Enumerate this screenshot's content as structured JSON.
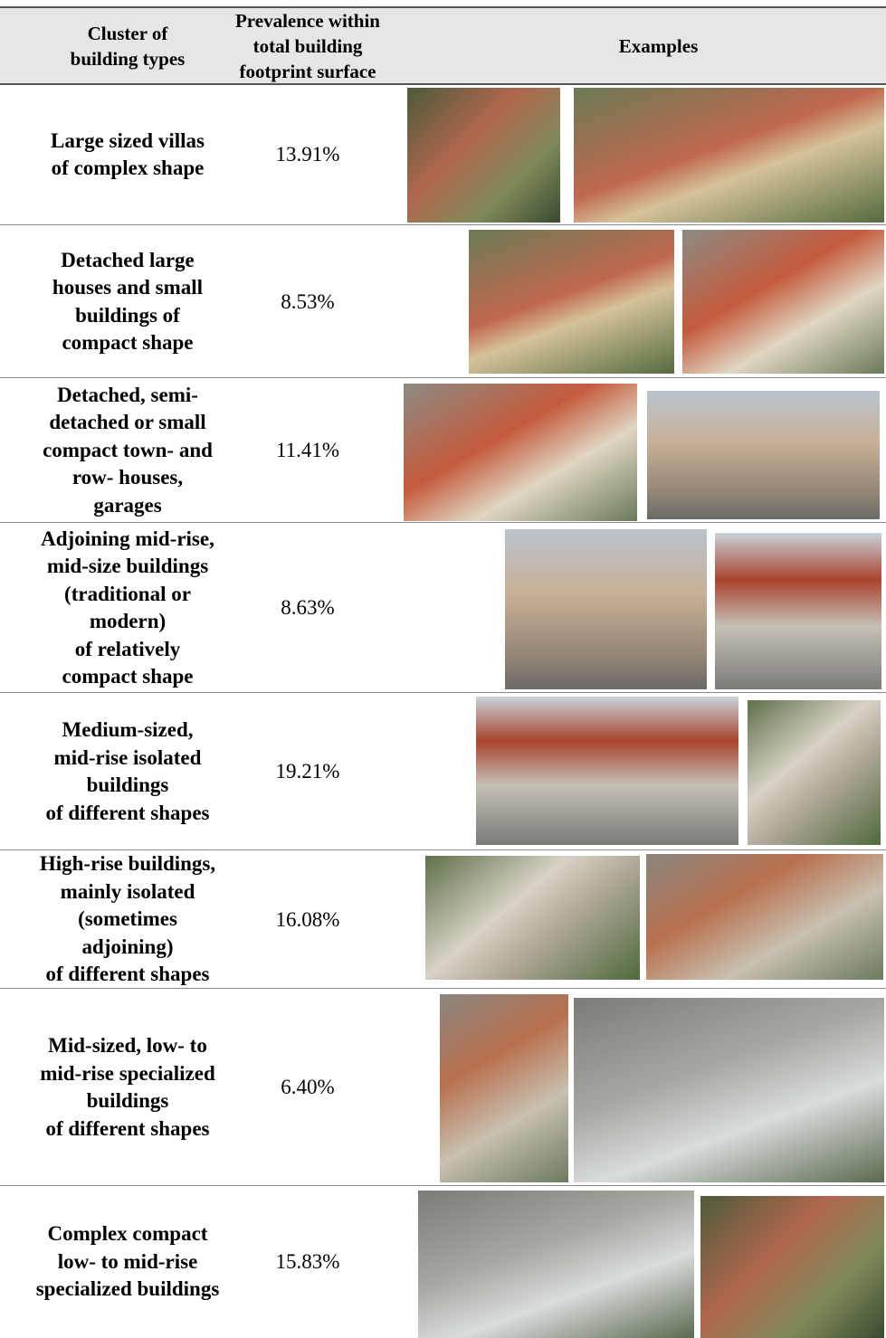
{
  "header": {
    "columns": [
      "Cluster of\nbuilding types",
      "Prevalence within\ntotal building\nfootprint surface",
      "Examples"
    ]
  },
  "table": {
    "rows": [
      [
        "Large sized villas\nof complex shape",
        "13.91%"
      ],
      [
        "Detached large\nhouses and small\nbuildings of\ncompact shape",
        "8.53%"
      ],
      [
        "Detached, semi-\ndetached or small\ncompact town- and\nrow- houses,\ngarages",
        "11.41%"
      ],
      [
        "Adjoining mid-rise,\nmid-size buildings\n(traditional or\nmodern)\nof relatively\ncompact shape",
        "8.63%"
      ],
      [
        "Medium-sized,\nmid-rise isolated\nbuildings\nof different shapes",
        "19.21%"
      ],
      [
        "High-rise buildings,\nmainly isolated\n(sometimes\nadjoining)\nof different shapes",
        "16.08%"
      ],
      [
        "Mid-sized, low- to\nmid-rise specialized\nbuildings\nof different shapes",
        "6.40%"
      ],
      [
        "Complex compact\nlow- to mid-rise\nspecialized buildings",
        "15.83%"
      ]
    ]
  }
}
